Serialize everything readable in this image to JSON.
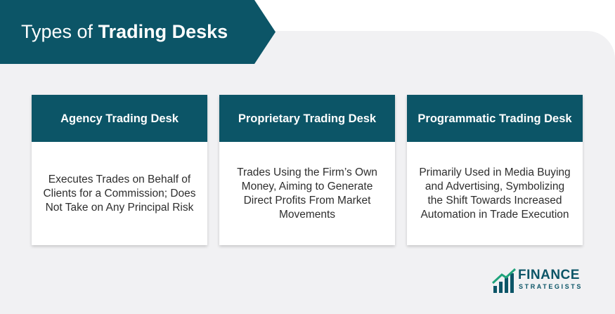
{
  "title": {
    "regular": "Types of ",
    "bold": "Trading Desks"
  },
  "colors": {
    "banner": "#0c5567",
    "panel": "#f1f1f3",
    "card_header": "#0c5567",
    "body_text": "#2e2e2e"
  },
  "cards": [
    {
      "heading": "Agency Trading Desk",
      "description": "Executes Trades on Behalf of Clients for a Commission; Does Not Take on Any Principal Risk"
    },
    {
      "heading": "Proprietary Trading Desk",
      "description": "Trades Using the Firm’s Own Money, Aiming to Generate Direct Profits From Market Movements"
    },
    {
      "heading": "Programmatic Trading Desk",
      "description": "Primarily Used in Media Buying and Advertising, Symbolizing the Shift Towards Increased Automation in Trade Execution"
    }
  ],
  "logo": {
    "name": "FINANCE",
    "sub": "STRATEGISTS",
    "icon": "rising-bars-icon"
  }
}
